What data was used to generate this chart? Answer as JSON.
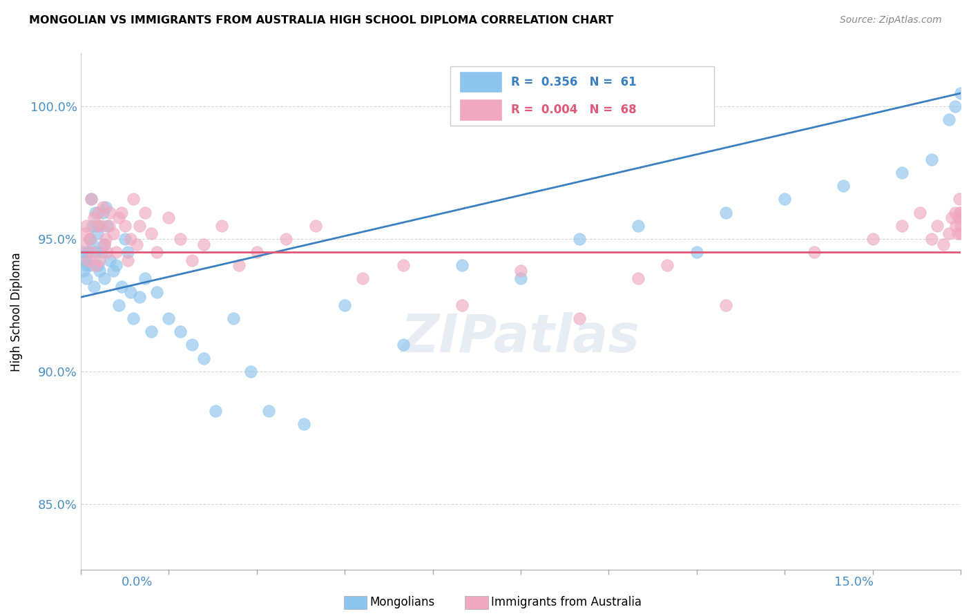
{
  "title": "MONGOLIAN VS IMMIGRANTS FROM AUSTRALIA HIGH SCHOOL DIPLOMA CORRELATION CHART",
  "source": "Source: ZipAtlas.com",
  "ylabel": "High School Diploma",
  "xmin": 0.0,
  "xmax": 15.0,
  "ymin": 82.5,
  "ymax": 102.0,
  "mongolian_R": 0.356,
  "mongolian_N": 61,
  "australia_R": 0.004,
  "australia_N": 68,
  "legend_label_blue": "Mongolians",
  "legend_label_pink": "Immigrants from Australia",
  "watermark": "ZIPatlas",
  "blue_color": "#8CC4EE",
  "pink_color": "#F0A8BE",
  "trend_blue_color": "#3A7FC1",
  "trend_pink_color": "#E05878",
  "yticks": [
    85,
    90,
    95,
    100
  ],
  "blue_trend_x0": 0.0,
  "blue_trend_y0": 92.8,
  "blue_trend_x1": 15.0,
  "blue_trend_y1": 100.5,
  "pink_trend_y": 94.5,
  "mongolian_x": [
    0.05,
    0.05,
    0.08,
    0.1,
    0.1,
    0.12,
    0.15,
    0.15,
    0.18,
    0.2,
    0.2,
    0.22,
    0.25,
    0.25,
    0.28,
    0.3,
    0.3,
    0.32,
    0.35,
    0.38,
    0.4,
    0.4,
    0.42,
    0.45,
    0.5,
    0.55,
    0.6,
    0.65,
    0.7,
    0.75,
    0.8,
    0.85,
    0.9,
    1.0,
    1.1,
    1.2,
    1.3,
    1.5,
    1.7,
    1.9,
    2.1,
    2.3,
    2.6,
    2.9,
    3.2,
    3.8,
    4.5,
    5.5,
    6.5,
    7.5,
    8.5,
    9.5,
    10.5,
    11.0,
    12.0,
    13.0,
    14.0,
    14.5,
    14.8,
    14.9,
    15.0
  ],
  "mongolian_y": [
    94.5,
    93.8,
    94.2,
    93.5,
    94.0,
    94.5,
    94.0,
    95.0,
    96.5,
    94.8,
    95.5,
    93.2,
    94.5,
    96.0,
    95.2,
    94.0,
    95.5,
    93.8,
    94.5,
    96.0,
    93.5,
    94.8,
    96.2,
    95.5,
    94.2,
    93.8,
    94.0,
    92.5,
    93.2,
    95.0,
    94.5,
    93.0,
    92.0,
    92.8,
    93.5,
    91.5,
    93.0,
    92.0,
    91.5,
    91.0,
    90.5,
    88.5,
    92.0,
    90.0,
    88.5,
    88.0,
    92.5,
    91.0,
    94.0,
    93.5,
    95.0,
    95.5,
    94.5,
    96.0,
    96.5,
    97.0,
    97.5,
    98.0,
    99.5,
    100.0,
    100.5
  ],
  "australia_x": [
    0.05,
    0.08,
    0.1,
    0.12,
    0.15,
    0.18,
    0.2,
    0.22,
    0.25,
    0.28,
    0.3,
    0.32,
    0.35,
    0.38,
    0.4,
    0.42,
    0.45,
    0.48,
    0.5,
    0.55,
    0.6,
    0.65,
    0.7,
    0.75,
    0.8,
    0.85,
    0.9,
    0.95,
    1.0,
    1.1,
    1.2,
    1.3,
    1.5,
    1.7,
    1.9,
    2.1,
    2.4,
    2.7,
    3.0,
    3.5,
    4.0,
    4.8,
    5.5,
    6.5,
    7.5,
    8.5,
    9.5,
    10.0,
    11.0,
    12.5,
    13.5,
    14.0,
    14.3,
    14.5,
    14.6,
    14.7,
    14.8,
    14.85,
    14.9,
    14.92,
    14.95,
    14.97,
    14.98,
    14.99,
    15.0,
    15.0,
    15.0,
    15.0
  ],
  "australia_y": [
    94.8,
    95.2,
    95.5,
    94.2,
    95.0,
    96.5,
    94.5,
    95.8,
    94.0,
    95.5,
    96.0,
    94.2,
    95.5,
    96.2,
    94.8,
    95.0,
    94.5,
    95.5,
    96.0,
    95.2,
    94.5,
    95.8,
    96.0,
    95.5,
    94.2,
    95.0,
    96.5,
    94.8,
    95.5,
    96.0,
    95.2,
    94.5,
    95.8,
    95.0,
    94.2,
    94.8,
    95.5,
    94.0,
    94.5,
    95.0,
    95.5,
    93.5,
    94.0,
    92.5,
    93.8,
    92.0,
    93.5,
    94.0,
    92.5,
    94.5,
    95.0,
    95.5,
    96.0,
    95.0,
    95.5,
    94.8,
    95.2,
    95.8,
    96.0,
    95.5,
    95.2,
    95.8,
    96.5,
    96.0,
    95.5,
    95.2,
    95.8,
    96.0
  ]
}
